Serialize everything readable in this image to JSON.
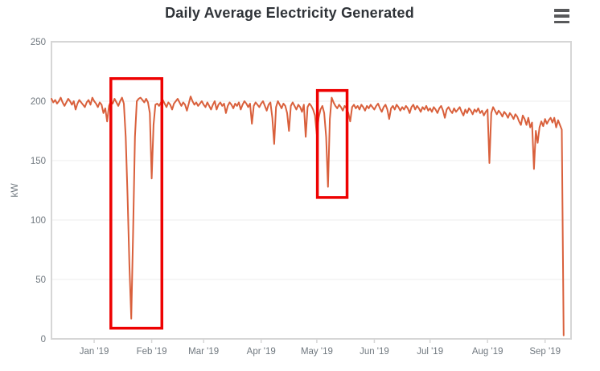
{
  "header": {
    "title": "Daily Average Electricity Generated"
  },
  "chart_data": {
    "type": "line",
    "title": "Daily Average Electricity Generated",
    "xlabel": "",
    "ylabel": "kW",
    "ylim": [
      0,
      250
    ],
    "y_ticks": [
      0,
      50,
      100,
      150,
      200,
      250
    ],
    "grid": "horizontal",
    "legend": "none",
    "x_total_days": 280,
    "x_ticks": [
      {
        "label": "Jan '19",
        "day": 23
      },
      {
        "label": "Feb '19",
        "day": 54
      },
      {
        "label": "Mar '19",
        "day": 82
      },
      {
        "label": "Apr '19",
        "day": 113
      },
      {
        "label": "May '19",
        "day": 143
      },
      {
        "label": "Jun '19",
        "day": 174
      },
      {
        "label": "Jul '19",
        "day": 204
      },
      {
        "label": "Aug '19",
        "day": 235
      },
      {
        "label": "Sep '19",
        "day": 266
      }
    ],
    "series": [
      {
        "name": "Daily Average Electricity Generated (kW)",
        "color": "#d9603c",
        "start_day": 0,
        "values": [
          202,
          199,
          201,
          198,
          200,
          203,
          199,
          196,
          199,
          202,
          200,
          197,
          200,
          193,
          198,
          201,
          199,
          197,
          195,
          199,
          201,
          197,
          203,
          200,
          198,
          195,
          199,
          197,
          190,
          194,
          183,
          196,
          200,
          198,
          202,
          199,
          196,
          200,
          203,
          198,
          170,
          120,
          62,
          17,
          90,
          170,
          200,
          202,
          203,
          201,
          199,
          202,
          199,
          190,
          135,
          180,
          197,
          198,
          196,
          199,
          201,
          198,
          195,
          199,
          197,
          193,
          198,
          200,
          202,
          199,
          196,
          199,
          197,
          192,
          198,
          204,
          200,
          197,
          199,
          196,
          198,
          200,
          197,
          195,
          199,
          196,
          193,
          197,
          200,
          193,
          197,
          199,
          196,
          198,
          190,
          196,
          199,
          197,
          194,
          198,
          196,
          199,
          193,
          197,
          200,
          198,
          195,
          198,
          181,
          196,
          199,
          197,
          195,
          198,
          200,
          196,
          192,
          197,
          199,
          186,
          164,
          195,
          200,
          197,
          194,
          198,
          196,
          190,
          175,
          196,
          199,
          196,
          193,
          197,
          195,
          191,
          197,
          170,
          195,
          198,
          196,
          193,
          188,
          172,
          186,
          193,
          196,
          190,
          170,
          128,
          185,
          203,
          199,
          196,
          194,
          197,
          195,
          192,
          196,
          194,
          190,
          183,
          195,
          197,
          194,
          196,
          193,
          197,
          195,
          192,
          196,
          194,
          197,
          195,
          193,
          196,
          198,
          194,
          191,
          195,
          197,
          193,
          185,
          194,
          196,
          193,
          197,
          195,
          192,
          195,
          193,
          196,
          194,
          190,
          195,
          197,
          193,
          196,
          194,
          191,
          195,
          193,
          196,
          192,
          194,
          191,
          195,
          193,
          190,
          194,
          196,
          192,
          186,
          193,
          195,
          192,
          190,
          194,
          191,
          193,
          195,
          191,
          188,
          193,
          190,
          194,
          192,
          189,
          193,
          191,
          194,
          190,
          192,
          188,
          191,
          193,
          148,
          190,
          195,
          192,
          189,
          192,
          190,
          187,
          191,
          189,
          186,
          190,
          188,
          185,
          189,
          187,
          183,
          180,
          188,
          185,
          180,
          186,
          178,
          182,
          143,
          175,
          165,
          178,
          183,
          179,
          185,
          181,
          184,
          186,
          182,
          186,
          178,
          184,
          180,
          176,
          3
        ]
      }
    ],
    "annotations": [
      {
        "type": "rect",
        "color": "#ee0202",
        "day_start": 32,
        "day_end": 59.5,
        "value_min": 9,
        "value_max": 219
      },
      {
        "type": "rect",
        "color": "#ee0202",
        "day_start": 143.3,
        "day_end": 159.3,
        "value_min": 119,
        "value_max": 209
      }
    ],
    "colors": {
      "series_line": "#d9603c",
      "annotation": "#ee0202",
      "grid": "#ececec",
      "plot_border": "#d6d6d6",
      "axis_label": "#70787f",
      "title": "#2f3338"
    }
  }
}
